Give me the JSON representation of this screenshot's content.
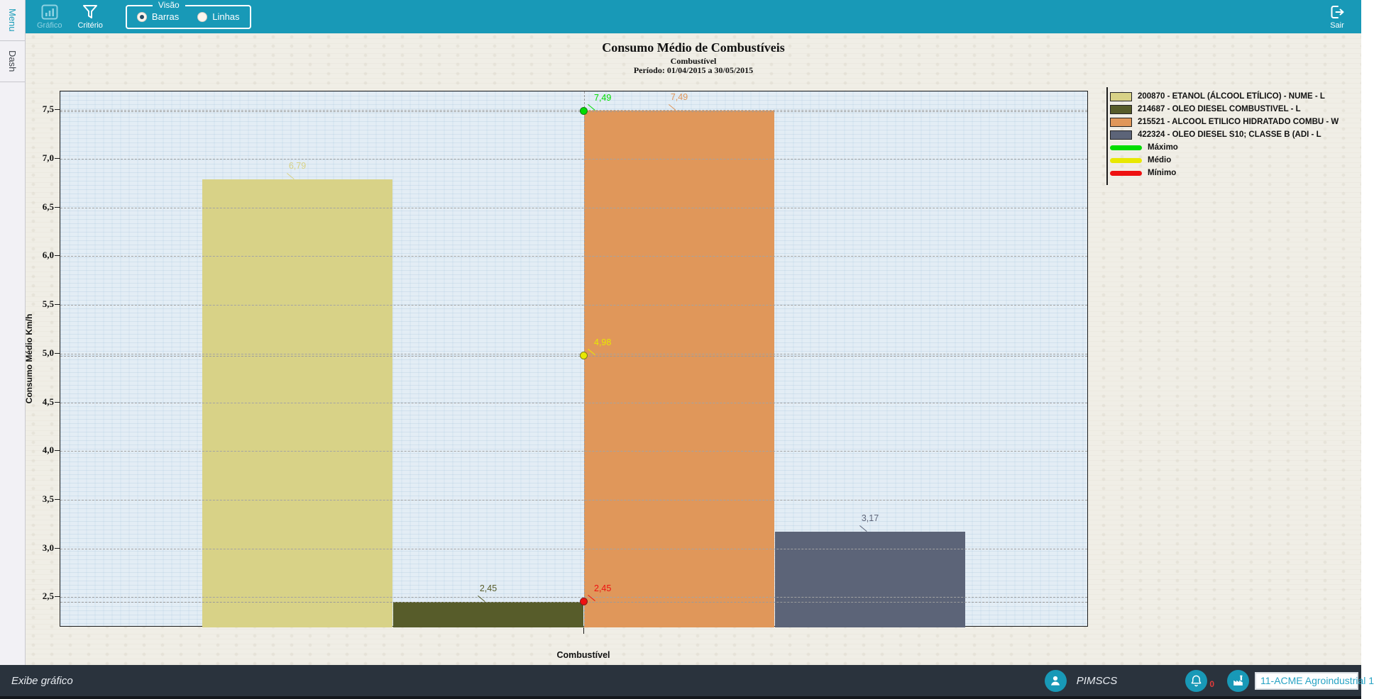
{
  "sidebar": {
    "tabs": [
      {
        "label": "Menu"
      },
      {
        "label": "Dash"
      }
    ]
  },
  "toolbar": {
    "graph_button": "Gráfico",
    "criteria_button": "Critério",
    "view_group": {
      "label": "Visão",
      "options": [
        {
          "label": "Barras",
          "selected": true
        },
        {
          "label": "Linhas",
          "selected": false
        }
      ]
    },
    "exit_button": "Sair"
  },
  "chart_data": {
    "type": "bar",
    "title": "Consumo Médio de Combustíveis",
    "subtitle": "Combustível",
    "period": "Período: 01/04/2015 a 30/05/2015",
    "xlabel": "Combustível",
    "ylabel": "Consumo Médio Km/h",
    "ylim": [
      2.19,
      7.69
    ],
    "yticks": [
      7.5,
      7.0,
      6.5,
      6.0,
      5.5,
      5.0,
      4.5,
      4.0,
      3.5,
      3.0,
      2.5
    ],
    "grid": "horizontal-dashed",
    "legend_position": "right",
    "categories": [
      "Combustível"
    ],
    "series": [
      {
        "name": "200870 - ETANOL (ÁLCOOL ETÍLICO) - NUME - L",
        "value": 6.79,
        "label": "6,79",
        "color": "#d8d287"
      },
      {
        "name": "214687 - OLEO DIESEL COMBUSTIVEL - L",
        "value": 2.45,
        "label": "2,45",
        "color": "#575c2a"
      },
      {
        "name": "215521 - ALCOOL ETILICO HIDRATADO COMBU - W",
        "value": 7.49,
        "label": "7,49",
        "color": "#e0975a"
      },
      {
        "name": "422324 - OLEO DIESEL S10; CLASSE B (ADI - L",
        "value": 3.17,
        "label": "3,17",
        "color": "#5c6478"
      }
    ],
    "markers": [
      {
        "name": "Máximo",
        "value": 7.49,
        "label": "7,49",
        "color": "#00dd00"
      },
      {
        "name": "Médio",
        "value": 4.98,
        "label": "4,98",
        "color": "#e8e800"
      },
      {
        "name": "Mínimo",
        "value": 2.45,
        "label": "2,45",
        "color": "#ee1111"
      }
    ]
  },
  "statusbar": {
    "left_text": "Exibe gráfico",
    "user": "PIMSCS",
    "notification_count": "0",
    "company": "11-ACME Agroindustrial 1"
  }
}
